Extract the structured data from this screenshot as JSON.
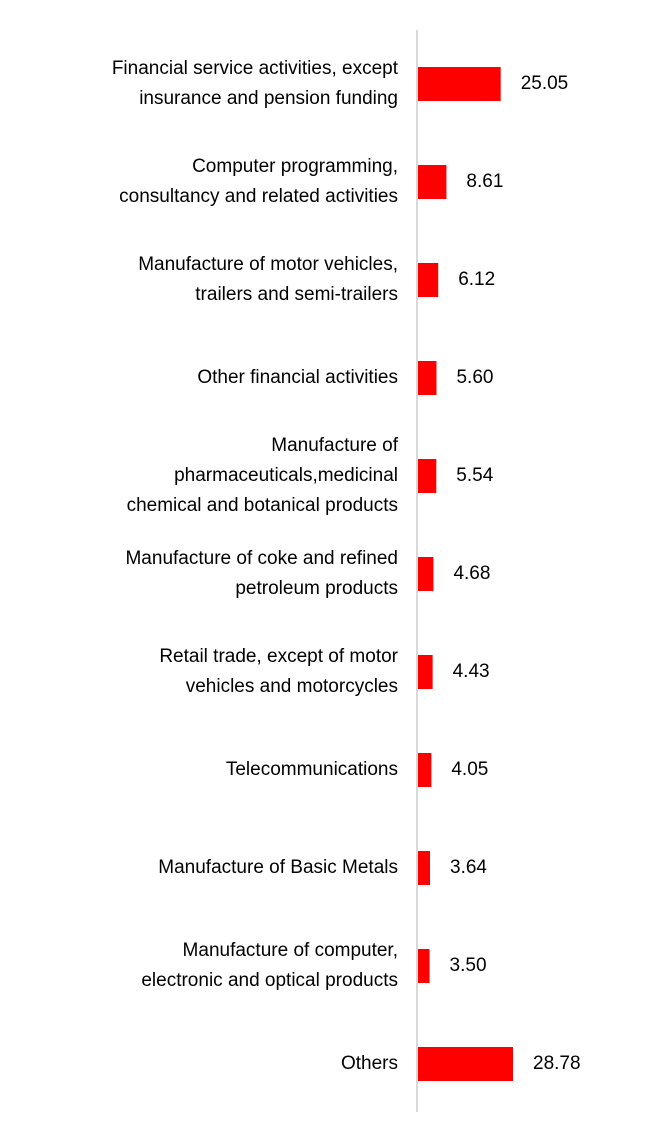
{
  "chart_data": {
    "type": "hbar",
    "color": "#ff0000",
    "categories": [
      "Financial service activities, except\ninsurance and pension funding",
      "Computer programming,\nconsultancy and related activities",
      "Manufacture of motor vehicles,\ntrailers and semi-trailers",
      "Other financial activities",
      "Manufacture of\npharmaceuticals,medicinal\nchemical and botanical products",
      "Manufacture of coke and refined\npetroleum products",
      "Retail trade, except of motor\nvehicles and motorcycles",
      "Telecommunications",
      "Manufacture of Basic Metals",
      "Manufacture of computer,\nelectronic and optical products",
      "Others"
    ],
    "values": [
      25.05,
      8.61,
      6.12,
      5.6,
      5.54,
      4.68,
      4.43,
      4.05,
      3.64,
      3.5,
      28.78
    ],
    "value_labels": [
      "25.05",
      "8.61",
      "6.12",
      "5.60",
      "5.54",
      "4.68",
      "4.43",
      "4.05",
      "3.64",
      "3.50",
      "28.78"
    ]
  }
}
